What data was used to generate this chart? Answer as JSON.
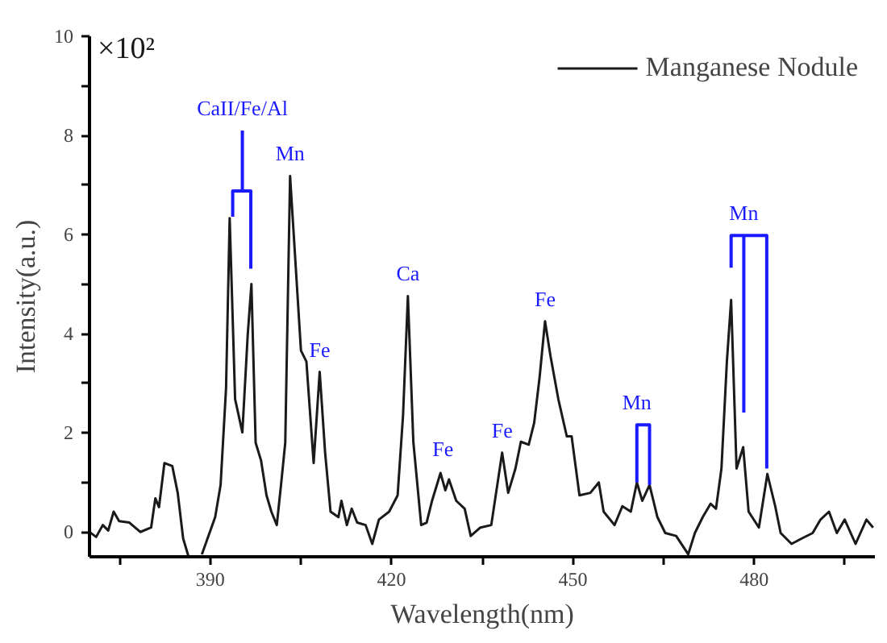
{
  "chart_data": {
    "type": "line",
    "xlabel": "Wavelength(nm)",
    "ylabel": "Intensity(a.u.)",
    "xlim": [
      370,
      500
    ],
    "ylim": [
      -0.5,
      10
    ],
    "xticks": [
      {
        "value": 375,
        "label": null
      },
      390,
      {
        "value": 405,
        "label": null
      },
      420,
      {
        "value": 435,
        "label": null
      },
      450,
      {
        "value": 465,
        "label": null
      },
      480,
      {
        "value": 495,
        "label": null
      }
    ],
    "yticks": [
      0,
      {
        "value": 1,
        "label": null
      },
      2,
      {
        "value": 3,
        "label": null
      },
      4,
      {
        "value": 5,
        "label": null
      },
      6,
      {
        "value": 7,
        "label": null
      },
      8,
      {
        "value": 9,
        "label": null
      },
      10
    ],
    "grid": false,
    "legend": "top right",
    "series": [
      {
        "name": "Manganese Nodule",
        "color": "#1a1a1a",
        "x": [
          370.0,
          371.1,
          372.2,
          373.1,
          374.0,
          374.9,
          376.6,
          378.4,
          380.2,
          380.9,
          381.5,
          382.4,
          383.7,
          384.6,
          385.5,
          386.4,
          387.5,
          388.6,
          390.8,
          391.7,
          392.6,
          393.2,
          394.1,
          395.3,
          396.2,
          396.8,
          397.5,
          398.4,
          399.3,
          400.1,
          401.0,
          401.7,
          402.4,
          403.2,
          405.0,
          405.9,
          407.1,
          408.1,
          409.0,
          409.9,
          411.2,
          411.7,
          412.6,
          413.4,
          414.3,
          415.7,
          416.8,
          417.9,
          419.6,
          421.0,
          421.9,
          422.7,
          423.6,
          424.9,
          425.8,
          426.7,
          428.1,
          428.9,
          429.5,
          430.7,
          432.1,
          433.1,
          434.7,
          436.5,
          438.3,
          439.3,
          440.5,
          441.4,
          442.7,
          443.6,
          444.5,
          445.4,
          446.3,
          447.6,
          449.0,
          449.8,
          451.1,
          452.9,
          454.3,
          455.1,
          456.9,
          458.2,
          459.6,
          460.6,
          461.5,
          462.7,
          464.0,
          465.3,
          467.1,
          469.1,
          470.2,
          471.5,
          472.8,
          473.7,
          474.6,
          475.5,
          476.2,
          477.1,
          478.2,
          479.1,
          480.8,
          482.2,
          483.5,
          484.4,
          486.2,
          487.9,
          489.7,
          491.0,
          492.4,
          493.7,
          495.0,
          496.8,
          498.6,
          499.7
        ],
        "values": [
          0.0,
          -0.1,
          0.14,
          0.03,
          0.41,
          0.22,
          0.19,
          0.0,
          0.09,
          0.68,
          0.5,
          1.39,
          1.33,
          0.79,
          -0.13,
          -0.5,
          null,
          -0.45,
          0.3,
          0.95,
          2.9,
          6.33,
          2.68,
          2.01,
          4.0,
          5.0,
          1.8,
          1.44,
          0.74,
          0.41,
          0.14,
          0.95,
          1.8,
          7.18,
          3.66,
          3.44,
          1.39,
          3.23,
          1.6,
          0.41,
          0.3,
          0.63,
          0.14,
          0.47,
          0.19,
          0.14,
          -0.24,
          0.25,
          0.41,
          0.74,
          2.36,
          4.76,
          1.82,
          0.14,
          0.19,
          0.63,
          1.19,
          0.84,
          1.06,
          0.63,
          0.47,
          -0.08,
          0.09,
          0.14,
          1.6,
          0.79,
          1.28,
          1.82,
          1.76,
          2.2,
          3.12,
          4.25,
          3.55,
          2.68,
          1.93,
          1.93,
          0.74,
          0.79,
          1.0,
          0.41,
          0.14,
          0.52,
          0.41,
          1.0,
          0.63,
          0.95,
          0.3,
          -0.02,
          -0.08,
          -0.45,
          -0.02,
          0.3,
          0.57,
          0.47,
          1.28,
          3.44,
          4.68,
          1.28,
          1.71,
          0.41,
          0.09,
          1.17,
          0.52,
          -0.02,
          -0.24,
          -0.13,
          -0.02,
          0.25,
          0.41,
          -0.02,
          0.25,
          -0.24,
          0.25,
          0.09
        ]
      },
      {
        "color": "#1a1aff",
        "x": [
          393.7,
          393.7,
          396.7,
          396.7,
          null,
          395.3,
          395.3
        ],
        "values": [
          6.36,
          6.88,
          6.88,
          5.31,
          null,
          6.88,
          8.1
        ]
      },
      {
        "color": "#1a1aff",
        "x": [
          460.6,
          460.6,
          462.7,
          462.7
        ],
        "values": [
          1.0,
          2.16,
          2.16,
          0.95
        ]
      },
      {
        "color": "#1a1aff",
        "x": [
          476.2,
          476.2,
          482.1,
          482.1,
          null,
          478.3,
          478.3
        ],
        "values": [
          5.33,
          5.98,
          5.98,
          1.28,
          null,
          5.98,
          2.41
        ]
      }
    ],
    "annotations": [
      "×10²",
      {
        "text": "CaII/Fe/Al",
        "x": 395.3,
        "y": 8.1
      },
      {
        "text": "Mn",
        "x": 403.2,
        "y": 7.18
      },
      {
        "text": "Fe",
        "x": 408.1,
        "y": 3.23
      },
      {
        "text": "Ca",
        "x": 422.7,
        "y": 4.76
      },
      {
        "text": "Fe",
        "x": 428.5,
        "y": 1.22
      },
      {
        "text": "Fe",
        "x": 438.3,
        "y": 1.6
      },
      {
        "text": "Fe",
        "x": 445.4,
        "y": 4.25
      },
      {
        "text": "Mn",
        "x": 460.6,
        "y": 2.16
      },
      {
        "text": "Mn",
        "x": 478.3,
        "y": 5.98
      }
    ]
  }
}
